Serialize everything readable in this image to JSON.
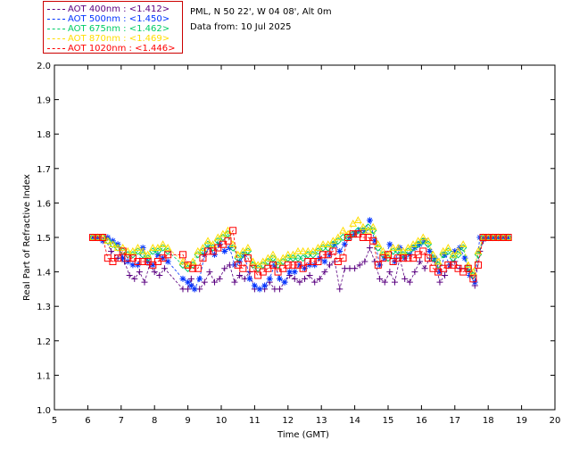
{
  "header": {
    "site_line": "PML, N 50 22', W 04 08', Alt 0m",
    "date_line": "Data from: 10 Jul 2025"
  },
  "legend": [
    {
      "label": "AOT  400nm : <1.412>",
      "color": "#5a0080"
    },
    {
      "label": "AOT  500nm : <1.450>",
      "color": "#0033ff"
    },
    {
      "label": "AOT  675nm : <1.462>",
      "color": "#00cc66"
    },
    {
      "label": "AOT  870nm : <1.469>",
      "color": "#ffdd00"
    },
    {
      "label": "AOT 1020nm : <1.446>",
      "color": "#ff0000"
    }
  ],
  "chart_data": {
    "type": "scatter",
    "title": "",
    "xlabel": "Time (GMT)",
    "ylabel": "Real Part of Refractive Index",
    "xlim": [
      5,
      20
    ],
    "ylim": [
      1.0,
      2.0
    ],
    "xticks": [
      5,
      6,
      7,
      8,
      9,
      10,
      11,
      12,
      13,
      14,
      15,
      16,
      17,
      18,
      19,
      20
    ],
    "yticks": [
      "1.0",
      "1.1",
      "1.2",
      "1.3",
      "1.4",
      "1.5",
      "1.6",
      "1.7",
      "1.8",
      "1.9",
      "2.0"
    ],
    "series": [
      {
        "name": "AOT 400nm",
        "color": "#5a0080",
        "marker": "plus",
        "x": [
          6.15,
          6.3,
          6.5,
          6.7,
          6.9,
          7.1,
          7.25,
          7.4,
          7.55,
          7.7,
          7.85,
          8.0,
          8.15,
          8.3,
          8.85,
          9.0,
          9.1,
          9.2,
          9.35,
          9.5,
          9.65,
          9.8,
          9.95,
          10.1,
          10.25,
          10.4,
          10.55,
          10.7,
          10.85,
          11.0,
          11.15,
          11.3,
          11.45,
          11.6,
          11.75,
          11.9,
          12.05,
          12.2,
          12.35,
          12.5,
          12.65,
          12.8,
          12.95,
          13.1,
          13.25,
          13.4,
          13.55,
          13.7,
          13.85,
          14.0,
          14.15,
          14.3,
          14.45,
          14.6,
          14.75,
          14.9,
          15.05,
          15.2,
          15.35,
          15.5,
          15.65,
          15.8,
          15.95,
          16.1,
          16.25,
          16.4,
          16.55,
          16.7,
          16.85,
          17.0,
          17.15,
          17.3,
          17.45,
          17.6,
          17.75,
          17.85,
          18.0,
          18.15,
          18.3,
          18.45,
          18.6
        ],
        "y": [
          1.5,
          1.5,
          1.5,
          1.46,
          1.44,
          1.43,
          1.39,
          1.38,
          1.4,
          1.37,
          1.42,
          1.4,
          1.39,
          1.41,
          1.35,
          1.35,
          1.38,
          1.35,
          1.35,
          1.37,
          1.4,
          1.37,
          1.38,
          1.41,
          1.42,
          1.37,
          1.39,
          1.38,
          1.4,
          1.35,
          1.35,
          1.35,
          1.37,
          1.35,
          1.35,
          1.37,
          1.39,
          1.38,
          1.37,
          1.38,
          1.39,
          1.37,
          1.38,
          1.4,
          1.42,
          1.43,
          1.35,
          1.41,
          1.41,
          1.41,
          1.42,
          1.43,
          1.47,
          1.43,
          1.38,
          1.37,
          1.4,
          1.37,
          1.44,
          1.38,
          1.37,
          1.4,
          1.43,
          1.41,
          1.44,
          1.43,
          1.37,
          1.39,
          1.42,
          1.43,
          1.41,
          1.41,
          1.4,
          1.36,
          1.46,
          1.49,
          1.5,
          1.5,
          1.5,
          1.5,
          1.5
        ]
      },
      {
        "name": "AOT 500nm",
        "color": "#0033ff",
        "marker": "star",
        "x": [
          6.15,
          6.3,
          6.45,
          6.6,
          6.75,
          6.9,
          7.05,
          7.2,
          7.35,
          7.5,
          7.65,
          7.8,
          7.95,
          8.1,
          8.25,
          8.4,
          8.85,
          9.0,
          9.1,
          9.2,
          9.35,
          9.5,
          9.65,
          9.8,
          9.95,
          10.1,
          10.25,
          10.4,
          10.55,
          10.7,
          10.85,
          11.0,
          11.15,
          11.3,
          11.45,
          11.6,
          11.75,
          11.9,
          12.05,
          12.2,
          12.35,
          12.5,
          12.65,
          12.8,
          12.95,
          13.1,
          13.25,
          13.4,
          13.55,
          13.7,
          13.85,
          14.0,
          14.15,
          14.3,
          14.45,
          14.6,
          14.75,
          14.9,
          15.05,
          15.2,
          15.35,
          15.5,
          15.65,
          15.8,
          15.95,
          16.1,
          16.25,
          16.4,
          16.55,
          16.7,
          16.85,
          17.0,
          17.15,
          17.3,
          17.45,
          17.6,
          17.75,
          17.85,
          18.0,
          18.15,
          18.3,
          18.45,
          18.6
        ],
        "y": [
          1.5,
          1.5,
          1.49,
          1.5,
          1.49,
          1.48,
          1.44,
          1.43,
          1.42,
          1.42,
          1.47,
          1.43,
          1.42,
          1.45,
          1.44,
          1.43,
          1.38,
          1.37,
          1.36,
          1.35,
          1.38,
          1.45,
          1.47,
          1.45,
          1.48,
          1.46,
          1.47,
          1.42,
          1.43,
          1.45,
          1.38,
          1.36,
          1.35,
          1.36,
          1.38,
          1.42,
          1.38,
          1.37,
          1.4,
          1.4,
          1.42,
          1.41,
          1.42,
          1.42,
          1.44,
          1.43,
          1.45,
          1.48,
          1.46,
          1.48,
          1.5,
          1.51,
          1.52,
          1.52,
          1.55,
          1.49,
          1.42,
          1.44,
          1.48,
          1.43,
          1.47,
          1.44,
          1.45,
          1.47,
          1.48,
          1.49,
          1.46,
          1.44,
          1.4,
          1.45,
          1.42,
          1.46,
          1.47,
          1.44,
          1.39,
          1.37,
          1.5,
          1.5,
          1.5,
          1.5,
          1.5,
          1.5,
          1.5
        ]
      },
      {
        "name": "AOT 675nm",
        "color": "#00cc66",
        "marker": "diamond",
        "x": [
          6.15,
          6.3,
          6.45,
          6.6,
          6.75,
          6.9,
          7.05,
          7.2,
          7.35,
          7.5,
          7.65,
          7.8,
          7.95,
          8.1,
          8.25,
          8.4,
          8.85,
          9.0,
          9.15,
          9.3,
          9.45,
          9.6,
          9.75,
          9.9,
          10.05,
          10.2,
          10.35,
          10.5,
          10.65,
          10.8,
          10.95,
          11.1,
          11.25,
          11.4,
          11.55,
          11.7,
          11.85,
          12.0,
          12.15,
          12.3,
          12.45,
          12.6,
          12.75,
          12.9,
          13.05,
          13.2,
          13.35,
          13.5,
          13.65,
          13.8,
          13.95,
          14.1,
          14.25,
          14.4,
          14.55,
          14.7,
          14.85,
          15.0,
          15.15,
          15.3,
          15.45,
          15.6,
          15.75,
          15.9,
          16.05,
          16.2,
          16.35,
          16.5,
          16.65,
          16.8,
          16.95,
          17.1,
          17.25,
          17.4,
          17.55,
          17.7,
          17.85,
          18.0,
          18.15,
          18.3,
          18.45,
          18.6
        ],
        "y": [
          1.5,
          1.5,
          1.5,
          1.49,
          1.48,
          1.47,
          1.46,
          1.45,
          1.45,
          1.46,
          1.45,
          1.44,
          1.46,
          1.46,
          1.47,
          1.46,
          1.42,
          1.41,
          1.42,
          1.45,
          1.46,
          1.48,
          1.47,
          1.49,
          1.5,
          1.51,
          1.47,
          1.44,
          1.45,
          1.46,
          1.42,
          1.41,
          1.42,
          1.43,
          1.44,
          1.42,
          1.43,
          1.44,
          1.44,
          1.44,
          1.44,
          1.45,
          1.45,
          1.46,
          1.47,
          1.47,
          1.48,
          1.49,
          1.5,
          1.5,
          1.51,
          1.52,
          1.52,
          1.53,
          1.52,
          1.47,
          1.45,
          1.44,
          1.46,
          1.46,
          1.45,
          1.46,
          1.47,
          1.48,
          1.49,
          1.48,
          1.44,
          1.42,
          1.45,
          1.46,
          1.44,
          1.45,
          1.47,
          1.41,
          1.39,
          1.45,
          1.5,
          1.5,
          1.5,
          1.5,
          1.5,
          1.5
        ]
      },
      {
        "name": "AOT 870nm",
        "color": "#ffdd00",
        "marker": "triangle",
        "x": [
          6.15,
          6.3,
          6.45,
          6.6,
          6.75,
          6.9,
          7.05,
          7.2,
          7.35,
          7.5,
          7.65,
          7.8,
          7.95,
          8.1,
          8.25,
          8.4,
          8.85,
          9.0,
          9.15,
          9.3,
          9.45,
          9.6,
          9.75,
          9.9,
          10.05,
          10.2,
          10.35,
          10.5,
          10.65,
          10.8,
          10.95,
          11.1,
          11.25,
          11.4,
          11.55,
          11.7,
          11.85,
          12.0,
          12.15,
          12.3,
          12.45,
          12.6,
          12.75,
          12.9,
          13.05,
          13.2,
          13.35,
          13.5,
          13.65,
          13.8,
          13.95,
          14.1,
          14.25,
          14.4,
          14.55,
          14.7,
          14.85,
          15.0,
          15.15,
          15.3,
          15.45,
          15.6,
          15.75,
          15.9,
          16.05,
          16.2,
          16.35,
          16.5,
          16.65,
          16.8,
          16.95,
          17.1,
          17.25,
          17.4,
          17.55,
          17.7,
          17.85,
          18.0,
          18.15,
          18.3,
          18.45,
          18.6
        ],
        "y": [
          1.5,
          1.5,
          1.5,
          1.49,
          1.48,
          1.47,
          1.47,
          1.46,
          1.46,
          1.47,
          1.46,
          1.45,
          1.47,
          1.47,
          1.48,
          1.47,
          1.43,
          1.42,
          1.43,
          1.46,
          1.47,
          1.49,
          1.48,
          1.5,
          1.51,
          1.52,
          1.48,
          1.45,
          1.46,
          1.47,
          1.43,
          1.42,
          1.43,
          1.44,
          1.45,
          1.43,
          1.44,
          1.45,
          1.45,
          1.46,
          1.46,
          1.46,
          1.46,
          1.47,
          1.48,
          1.48,
          1.49,
          1.5,
          1.52,
          1.51,
          1.54,
          1.55,
          1.53,
          1.52,
          1.53,
          1.48,
          1.46,
          1.45,
          1.47,
          1.47,
          1.46,
          1.47,
          1.48,
          1.49,
          1.5,
          1.49,
          1.45,
          1.43,
          1.46,
          1.47,
          1.45,
          1.46,
          1.48,
          1.42,
          1.4,
          1.46,
          1.5,
          1.5,
          1.5,
          1.5,
          1.5,
          1.5
        ]
      },
      {
        "name": "AOT 1020nm",
        "color": "#ff0000",
        "marker": "square",
        "x": [
          6.15,
          6.3,
          6.45,
          6.6,
          6.75,
          6.9,
          7.05,
          7.2,
          7.35,
          7.5,
          7.65,
          7.8,
          7.95,
          8.1,
          8.25,
          8.4,
          8.85,
          9.0,
          9.15,
          9.3,
          9.45,
          9.6,
          9.75,
          9.9,
          10.05,
          10.2,
          10.35,
          10.5,
          10.65,
          10.8,
          10.95,
          11.1,
          11.25,
          11.4,
          11.55,
          11.7,
          11.85,
          12.0,
          12.15,
          12.3,
          12.45,
          12.6,
          12.75,
          12.9,
          13.05,
          13.2,
          13.35,
          13.5,
          13.65,
          13.8,
          13.95,
          14.1,
          14.25,
          14.4,
          14.55,
          14.7,
          14.85,
          15.0,
          15.15,
          15.3,
          15.45,
          15.6,
          15.75,
          15.9,
          16.05,
          16.2,
          16.35,
          16.5,
          16.65,
          16.8,
          16.95,
          17.1,
          17.25,
          17.4,
          17.55,
          17.7,
          17.85,
          18.0,
          18.15,
          18.3,
          18.45,
          18.6
        ],
        "y": [
          1.5,
          1.5,
          1.5,
          1.44,
          1.43,
          1.44,
          1.46,
          1.44,
          1.44,
          1.43,
          1.43,
          1.43,
          1.42,
          1.43,
          1.44,
          1.45,
          1.45,
          1.42,
          1.41,
          1.41,
          1.44,
          1.46,
          1.46,
          1.47,
          1.48,
          1.49,
          1.52,
          1.42,
          1.41,
          1.44,
          1.41,
          1.39,
          1.4,
          1.41,
          1.42,
          1.4,
          1.41,
          1.42,
          1.42,
          1.42,
          1.41,
          1.43,
          1.43,
          1.43,
          1.45,
          1.45,
          1.46,
          1.43,
          1.44,
          1.5,
          1.51,
          1.51,
          1.5,
          1.5,
          1.49,
          1.42,
          1.44,
          1.45,
          1.43,
          1.44,
          1.44,
          1.44,
          1.44,
          1.45,
          1.46,
          1.44,
          1.41,
          1.4,
          1.41,
          1.42,
          1.42,
          1.41,
          1.4,
          1.41,
          1.38,
          1.42,
          1.5,
          1.5,
          1.5,
          1.5,
          1.5,
          1.5
        ]
      }
    ]
  }
}
